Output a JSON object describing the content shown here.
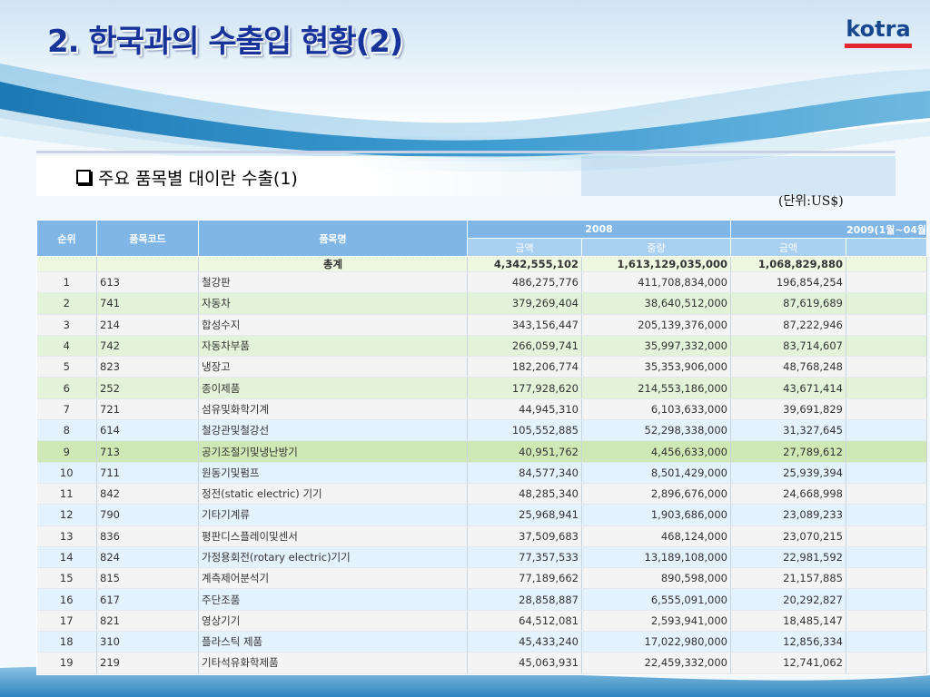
{
  "title": "2. 한국과의 수출입 현황(2)",
  "logo_text": "kotra",
  "subtitle": "주요 품목별 대이란 수출(1)",
  "unit": "(단위:US$)",
  "table": {
    "headers": {
      "rank": "순위",
      "code": "품목코드",
      "name": "품목명",
      "year1": "2008",
      "year2": "2009(1월~04월",
      "amount1": "금액",
      "weight1": "중량",
      "amount2": "금액"
    },
    "total": {
      "label": "총계",
      "amount2008": "4,342,555,102",
      "weight2008": "1,613,129,035,000",
      "amount2009": "1,068,829,880"
    },
    "rows": [
      {
        "rank": "1",
        "code": "613",
        "name": "철강판",
        "amount2008": "486,275,776",
        "weight2008": "411,708,834,000",
        "amount2009": "196,854,254"
      },
      {
        "rank": "2",
        "code": "741",
        "name": "자동차",
        "amount2008": "379,269,404",
        "weight2008": "38,640,512,000",
        "amount2009": "87,619,689"
      },
      {
        "rank": "3",
        "code": "214",
        "name": "합성수지",
        "amount2008": "343,156,447",
        "weight2008": "205,139,376,000",
        "amount2009": "87,222,946"
      },
      {
        "rank": "4",
        "code": "742",
        "name": "자동차부품",
        "amount2008": "266,059,741",
        "weight2008": "35,997,332,000",
        "amount2009": "83,714,607"
      },
      {
        "rank": "5",
        "code": "823",
        "name": "냉장고",
        "amount2008": "182,206,774",
        "weight2008": "35,353,906,000",
        "amount2009": "48,768,248"
      },
      {
        "rank": "6",
        "code": "252",
        "name": "종이제품",
        "amount2008": "177,928,620",
        "weight2008": "214,553,186,000",
        "amount2009": "43,671,414"
      },
      {
        "rank": "7",
        "code": "721",
        "name": "섬유및화학기계",
        "amount2008": "44,945,310",
        "weight2008": "6,103,633,000",
        "amount2009": "39,691,829"
      },
      {
        "rank": "8",
        "code": "614",
        "name": "철강관및철강선",
        "amount2008": "105,552,885",
        "weight2008": "52,298,338,000",
        "amount2009": "31,327,645"
      },
      {
        "rank": "9",
        "code": "713",
        "name": "공기조절기및냉난방기",
        "amount2008": "40,951,762",
        "weight2008": "4,456,633,000",
        "amount2009": "27,789,612"
      },
      {
        "rank": "10",
        "code": "711",
        "name": "원동기및펌프",
        "amount2008": "84,577,340",
        "weight2008": "8,501,429,000",
        "amount2009": "25,939,394"
      },
      {
        "rank": "11",
        "code": "842",
        "name": "정전(static electric) 기기",
        "amount2008": "48,285,340",
        "weight2008": "2,896,676,000",
        "amount2009": "24,668,998"
      },
      {
        "rank": "12",
        "code": "790",
        "name": "기타기계류",
        "amount2008": "25,968,941",
        "weight2008": "1,903,686,000",
        "amount2009": "23,089,233"
      },
      {
        "rank": "13",
        "code": "836",
        "name": "평판디스플레이및센서",
        "amount2008": "37,509,683",
        "weight2008": "468,124,000",
        "amount2009": "23,070,215"
      },
      {
        "rank": "14",
        "code": "824",
        "name": "가정용회전(rotary electric)기기",
        "amount2008": "77,357,533",
        "weight2008": "13,189,108,000",
        "amount2009": "22,981,592"
      },
      {
        "rank": "15",
        "code": "815",
        "name": "계측제어분석기",
        "amount2008": "77,189,662",
        "weight2008": "890,598,000",
        "amount2009": "21,157,885"
      },
      {
        "rank": "16",
        "code": "617",
        "name": "주단조품",
        "amount2008": "28,858,887",
        "weight2008": "6,555,091,000",
        "amount2009": "20,292,827"
      },
      {
        "rank": "17",
        "code": "821",
        "name": "영상기기",
        "amount2008": "64,512,081",
        "weight2008": "2,593,941,000",
        "amount2009": "18,485,147"
      },
      {
        "rank": "18",
        "code": "310",
        "name": "플라스틱 제품",
        "amount2008": "45,433,240",
        "weight2008": "17,022,980,000",
        "amount2009": "12,856,334"
      },
      {
        "rank": "19",
        "code": "219",
        "name": "기타석유화학제품",
        "amount2008": "45,063,931",
        "weight2008": "22,459,332,000",
        "amount2009": "12,741,062"
      }
    ]
  }
}
